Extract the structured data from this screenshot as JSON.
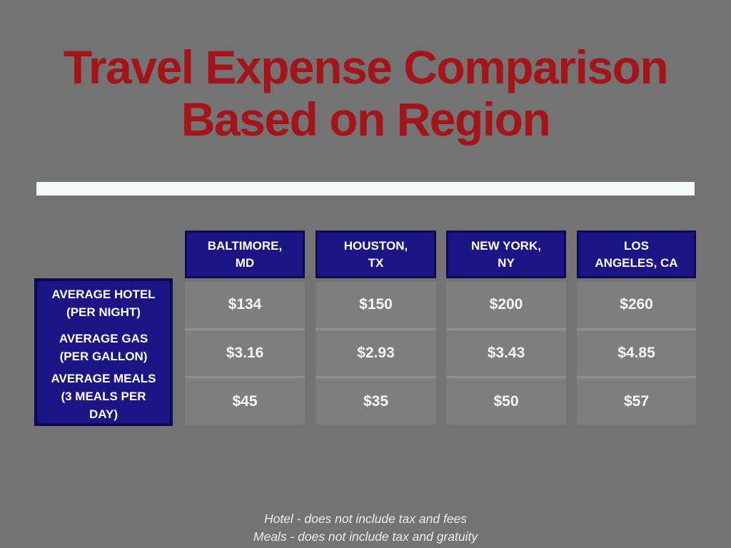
{
  "slide": {
    "title": "Travel Expense Comparison\nBased on Region",
    "footnotes": [
      "Hotel - does not include tax and fees",
      "Meals - does not include tax and gratuity"
    ]
  },
  "table": {
    "row_labels": [
      "AVERAGE HOTEL\n(PER NIGHT)",
      "AVERAGE GAS\n(PER GALLON)",
      "AVERAGE MEALS\n(3 MEALS PER\nDAY)"
    ],
    "columns": [
      {
        "header": "BALTIMORE,\nMD",
        "values": [
          "$134",
          "$3.16",
          "$45"
        ]
      },
      {
        "header": "HOUSTON,\nTX",
        "values": [
          "$150",
          "$2.93",
          "$35"
        ]
      },
      {
        "header": "NEW YORK,\nNY",
        "values": [
          "$200",
          "$3.43",
          "$50"
        ]
      },
      {
        "header": "LOS\nANGELES, CA",
        "values": [
          "$260",
          "$4.85",
          "$57"
        ]
      }
    ]
  },
  "chart_data": {
    "type": "table",
    "title": "Travel Expense Comparison Based on Region",
    "categories": [
      "Baltimore, MD",
      "Houston, TX",
      "New York, NY",
      "Los Angeles, CA"
    ],
    "rows": [
      {
        "label": "Average Hotel (per night)",
        "unit": "USD",
        "values": [
          134,
          150,
          200,
          260
        ]
      },
      {
        "label": "Average Gas (per gallon)",
        "unit": "USD",
        "values": [
          3.16,
          2.93,
          3.43,
          4.85
        ]
      },
      {
        "label": "Average Meals (3 meals per day)",
        "unit": "USD",
        "values": [
          45,
          35,
          50,
          57
        ]
      }
    ],
    "notes": [
      "Hotel - does not include tax and fees",
      "Meals - does not include tax and gratuity"
    ]
  },
  "colors": {
    "background": "#737373",
    "title_red": "#a41419",
    "header_fill": "#1c1585",
    "header_border": "#0d0a52",
    "cell_fill": "#7e7e7e",
    "cell_separator": "#8f8f8f",
    "divider_bar": "#f3faf7",
    "value_text": "#f5f5f5"
  }
}
